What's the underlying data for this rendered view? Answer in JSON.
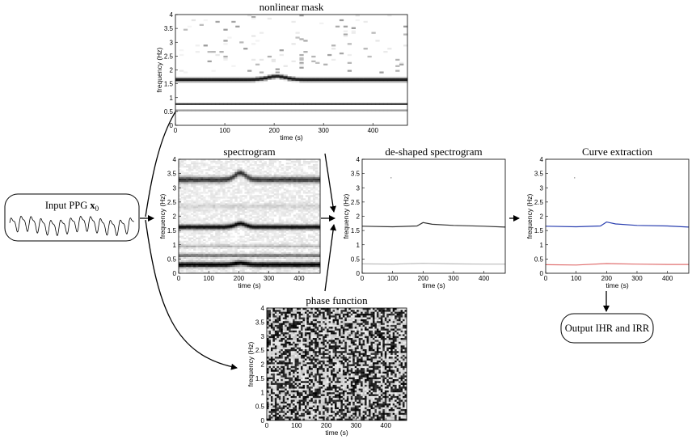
{
  "input_box": {
    "label": "Input PPG ",
    "sub_symbol": "x",
    "sub_index": "0"
  },
  "output_box": {
    "label": "Output IHR and IRR"
  },
  "chart_data": [
    {
      "id": "mask",
      "type": "heatmap",
      "title": "nonlinear mask",
      "xlabel": "time (s)",
      "ylabel": "frequency (Hz)",
      "xlim": [
        0,
        470
      ],
      "ylim": [
        0,
        4
      ],
      "xticks": [
        0,
        100,
        200,
        300,
        400
      ],
      "yticks": [
        0,
        0.5,
        1,
        1.5,
        2,
        2.5,
        3,
        3.5,
        4
      ],
      "style": "sparse"
    },
    {
      "id": "spectrogram",
      "type": "heatmap",
      "title": "spectrogram",
      "xlabel": "time (s)",
      "ylabel": "frequency (Hz)",
      "xlim": [
        0,
        470
      ],
      "ylim": [
        0,
        4
      ],
      "xticks": [
        0,
        100,
        200,
        300,
        400
      ],
      "yticks": [
        0,
        0.5,
        1,
        1.5,
        2,
        2.5,
        3,
        3.5,
        4
      ],
      "style": "bands"
    },
    {
      "id": "phase",
      "type": "heatmap",
      "title": "phase function",
      "xlabel": "time (s)",
      "ylabel": "frequency (Hz)",
      "xlim": [
        0,
        470
      ],
      "ylim": [
        0,
        4
      ],
      "xticks": [
        0,
        100,
        200,
        300,
        400
      ],
      "yticks": [
        0,
        0.5,
        1,
        1.5,
        2,
        2.5,
        3,
        3.5,
        4
      ],
      "style": "noise"
    },
    {
      "id": "deshaped",
      "type": "line",
      "title": "de-shaped spectrogram",
      "xlabel": "time (s)",
      "ylabel": "frequency (Hz)",
      "xlim": [
        0,
        470
      ],
      "ylim": [
        0,
        4
      ],
      "xticks": [
        0,
        100,
        200,
        300,
        400
      ],
      "yticks": [
        0,
        0.5,
        1,
        1.5,
        2,
        2.5,
        3,
        3.5,
        4
      ],
      "series": [
        {
          "color": "#333333",
          "x": [
            0,
            100,
            180,
            200,
            230,
            300,
            400,
            470
          ],
          "y": [
            1.65,
            1.63,
            1.66,
            1.78,
            1.72,
            1.68,
            1.65,
            1.62
          ]
        },
        {
          "color": "#bbbbbb",
          "x": [
            0,
            100,
            200,
            300,
            400,
            470
          ],
          "y": [
            0.33,
            0.32,
            0.35,
            0.33,
            0.32,
            0.32
          ]
        }
      ]
    },
    {
      "id": "curve",
      "type": "line",
      "title": "Curve extraction",
      "xlabel": "time (s)",
      "ylabel": "frequency (Hz)",
      "xlim": [
        0,
        470
      ],
      "ylim": [
        0,
        4
      ],
      "xticks": [
        0,
        100,
        200,
        300,
        400
      ],
      "yticks": [
        0,
        0.5,
        1,
        1.5,
        2,
        2.5,
        3,
        3.5,
        4
      ],
      "series": [
        {
          "color": "#2a3fb0",
          "x": [
            0,
            100,
            180,
            200,
            230,
            300,
            400,
            470
          ],
          "y": [
            1.65,
            1.63,
            1.66,
            1.8,
            1.73,
            1.68,
            1.66,
            1.62
          ]
        },
        {
          "color": "#e07070",
          "x": [
            0,
            100,
            200,
            300,
            400,
            470
          ],
          "y": [
            0.3,
            0.29,
            0.34,
            0.32,
            0.31,
            0.31
          ]
        }
      ]
    }
  ]
}
